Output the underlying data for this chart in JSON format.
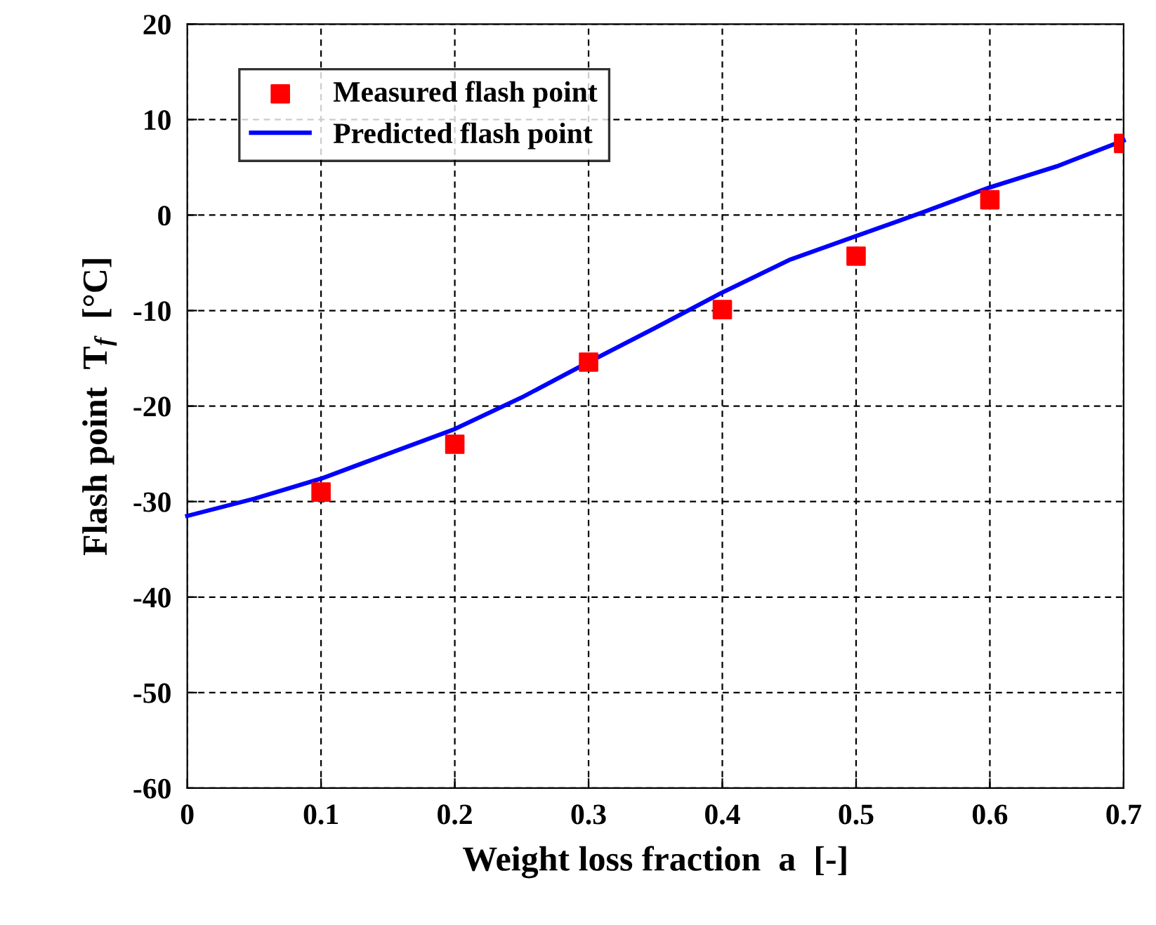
{
  "chart_data": {
    "type": "line",
    "xlabel": "Weight loss fraction  a  [-]",
    "ylabel": "Flash point  T$_{f}$  [°C]",
    "xlim": [
      0,
      0.7
    ],
    "xticks": [
      0,
      0.1,
      0.2,
      0.3,
      0.4,
      0.5,
      0.6,
      0.7
    ],
    "ylim": [
      -60,
      20
    ],
    "yticks": [
      -60,
      -50,
      -40,
      -30,
      -20,
      -10,
      0,
      10,
      20
    ],
    "grid": true,
    "legend": "top left",
    "series": [
      {
        "name": "Measured flash point",
        "type": "scatter",
        "marker": "square",
        "color": "#ff0000",
        "x": [
          0.1,
          0.2,
          0.3,
          0.4,
          0.5,
          0.6,
          0.7
        ],
        "values": [
          -29,
          -24,
          -15.4,
          -9.9,
          -4.3,
          1.6,
          7.5
        ]
      },
      {
        "name": "Predicted flash point",
        "color": "#0000ff",
        "x": [
          0,
          0.05,
          0.1,
          0.15,
          0.2,
          0.25,
          0.3,
          0.35,
          0.4,
          0.45,
          0.5,
          0.55,
          0.6,
          0.65,
          0.7
        ],
        "values": [
          -31.5,
          -29.7,
          -27.6,
          -25,
          -22.4,
          -19.1,
          -15.4,
          -11.8,
          -8.1,
          -4.7,
          -2.2,
          0.3,
          2.9,
          5.1,
          7.8
        ]
      }
    ]
  }
}
